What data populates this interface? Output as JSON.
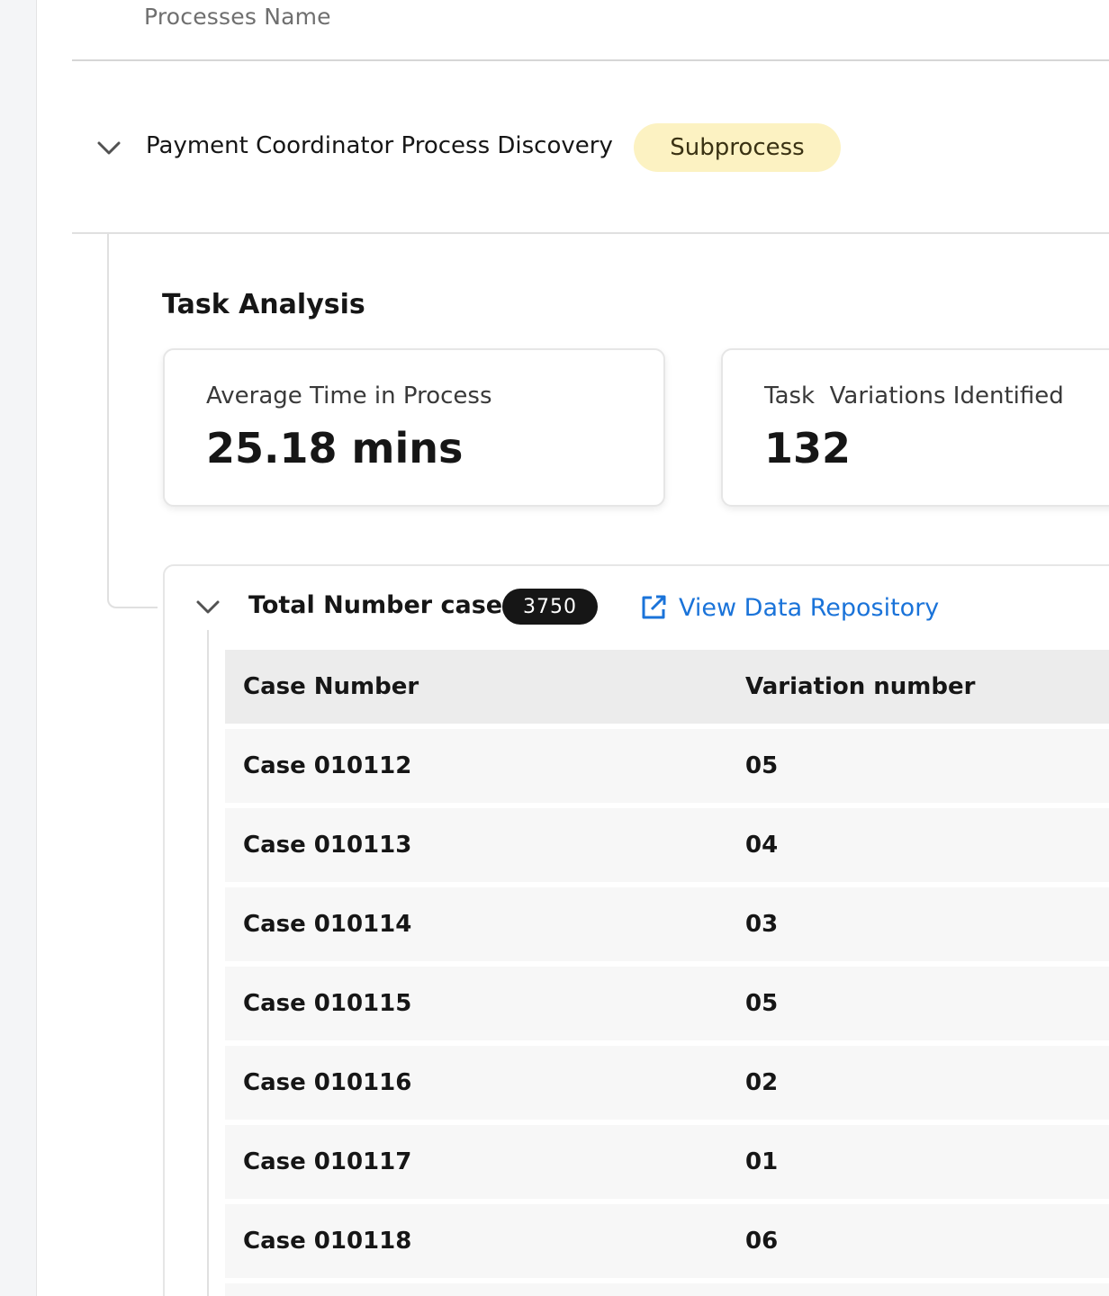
{
  "table_header": {
    "processes_name": "Processes Name"
  },
  "process": {
    "name": "Payment Coordinator Process Discovery",
    "tag": "Subprocess"
  },
  "task_analysis": {
    "title": "Task Analysis",
    "cards": [
      {
        "label": "Average Time in Process",
        "value": "25.18 mins"
      },
      {
        "label": "Task  Variations Identified",
        "value": "132"
      }
    ]
  },
  "cases": {
    "title": "Total Number cases",
    "count": "3750",
    "link_label": "View Data Repository",
    "columns": [
      "Case Number",
      "Variation number"
    ],
    "rows": [
      {
        "case": "Case 010112",
        "variation": "05"
      },
      {
        "case": "Case 010113",
        "variation": "04"
      },
      {
        "case": "Case 010114",
        "variation": "03"
      },
      {
        "case": "Case 010115",
        "variation": "05"
      },
      {
        "case": "Case 010116",
        "variation": "02"
      },
      {
        "case": "Case 010117",
        "variation": "01"
      },
      {
        "case": "Case 010118",
        "variation": "06"
      }
    ]
  },
  "colors": {
    "tag_background": "#fcf2c2",
    "badge_background": "#161616",
    "link": "#1a73d9",
    "row_background": "#f7f7f7",
    "header_background": "#ececec"
  },
  "icons": {
    "process_toggle": "chevron-down-icon",
    "cases_toggle": "chevron-down-icon",
    "repo_link": "external-link-icon"
  }
}
